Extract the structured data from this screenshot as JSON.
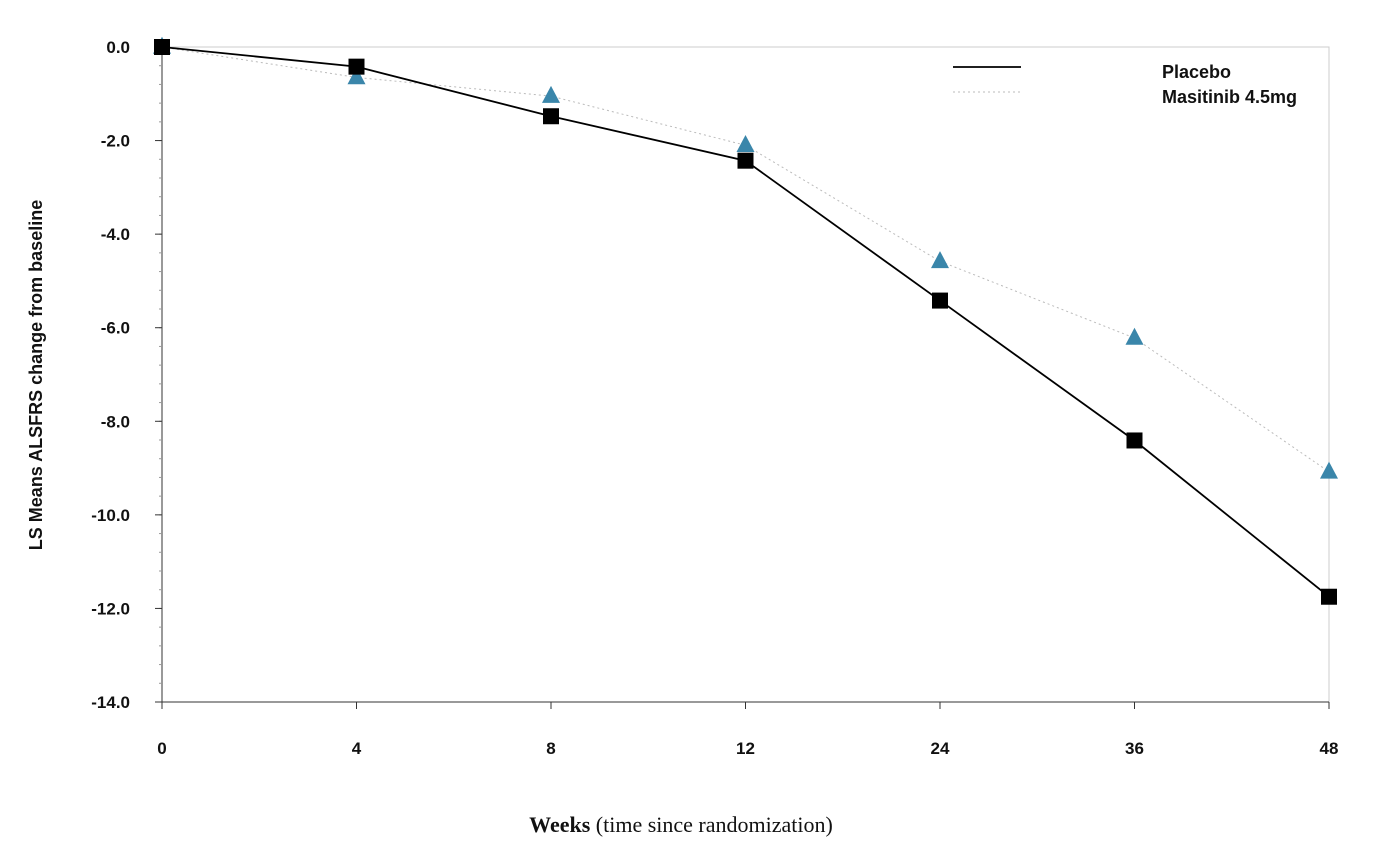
{
  "chart_data": {
    "type": "line",
    "x_categories": [
      "0",
      "4",
      "8",
      "12",
      "24",
      "36",
      "48"
    ],
    "ylabel": "LS Means ALSFRS change from baseline",
    "xlabel_bold": "Weeks",
    "xlabel_rest": " (time since randomization)",
    "ylim": [
      -14,
      0
    ],
    "y_ticks": [
      0,
      -2,
      -4,
      -6,
      -8,
      -10,
      -12,
      -14
    ],
    "y_tick_labels": [
      "0.0",
      "-2.0",
      "-4.0",
      "-6.0",
      "-8.0",
      "-10.0",
      "-12.0",
      "-14.0"
    ],
    "legend_position": "top-right",
    "series": [
      {
        "name": "Placebo",
        "marker": "square",
        "line": "solid",
        "color": "#000000",
        "values": [
          0.0,
          -0.42,
          -1.48,
          -2.43,
          -5.42,
          -8.41,
          -11.75
        ]
      },
      {
        "name": "Masitinib 4.5mg",
        "marker": "triangle",
        "line": "dotted",
        "color": "#3a86aa",
        "values": [
          0.0,
          -0.65,
          -1.05,
          -2.1,
          -4.58,
          -6.22,
          -9.08
        ]
      }
    ]
  }
}
